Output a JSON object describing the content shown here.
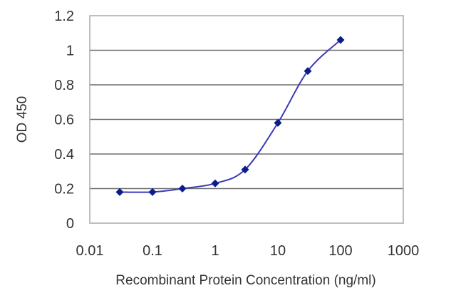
{
  "chart_data": {
    "type": "line",
    "x_scale": "log",
    "xlabel": "Recombinant Protein Concentration (ng/ml)",
    "ylabel": "OD 450",
    "xlim": [
      0.01,
      1000
    ],
    "ylim": [
      0,
      1.2
    ],
    "x_ticks": [
      0.01,
      0.1,
      1,
      10,
      100,
      1000
    ],
    "x_tick_labels": [
      "0.01",
      "0.1",
      "1",
      "10",
      "100",
      "1000"
    ],
    "y_ticks": [
      0,
      0.2,
      0.4,
      0.6,
      0.8,
      1,
      1.2
    ],
    "y_tick_labels": [
      "0",
      "0.2",
      "0.4",
      "0.6",
      "0.8",
      "1",
      "1.2"
    ],
    "grid": "horizontal",
    "legend": "none",
    "series": [
      {
        "x": [
          0.03,
          0.1,
          0.3,
          1,
          3,
          10,
          30,
          100
        ],
        "y": [
          0.18,
          0.18,
          0.2,
          0.23,
          0.31,
          0.58,
          0.88,
          1.06
        ]
      }
    ],
    "colors": {
      "line": "#3a3ab8",
      "marker": "#0b1c8c",
      "grid": "#6e6e6e",
      "frame": "#a8a8a8"
    }
  }
}
